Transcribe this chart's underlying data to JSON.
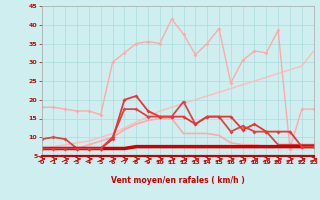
{
  "xlabel": "Vent moyen/en rafales ( km/h )",
  "xlim": [
    0,
    23
  ],
  "ylim": [
    5,
    45
  ],
  "yticks": [
    5,
    10,
    15,
    20,
    25,
    30,
    35,
    40,
    45
  ],
  "xticks": [
    0,
    1,
    2,
    3,
    4,
    5,
    6,
    7,
    8,
    9,
    10,
    11,
    12,
    13,
    14,
    15,
    16,
    17,
    18,
    19,
    20,
    21,
    22,
    23
  ],
  "bg_color": "#ceeef0",
  "grid_color": "#aadddd",
  "series": [
    {
      "y": [
        18,
        18,
        17.5,
        17,
        17,
        16,
        30,
        32.5,
        35,
        35.5,
        35,
        41.5,
        37.5,
        32,
        35,
        39,
        24.5,
        30.5,
        33,
        32.5,
        38.5,
        7,
        17.5,
        17.5
      ],
      "color": "#ffaaaa",
      "lw": 1.0,
      "marker": "D",
      "ms": 2.0
    },
    {
      "y": [
        7,
        7.5,
        8,
        8.5,
        9,
        10,
        11,
        12.5,
        14,
        15.5,
        17,
        18,
        19,
        20,
        21,
        22,
        23,
        24,
        25,
        26,
        27,
        28,
        29,
        33
      ],
      "color": "#ffbbbb",
      "lw": 1.0,
      "marker": null,
      "ms": 0
    },
    {
      "y": [
        7,
        7,
        7,
        7,
        8,
        9,
        10,
        12,
        13.5,
        14.5,
        15,
        15,
        11,
        11,
        11,
        10.5,
        8.5,
        8,
        8,
        7.5,
        7.5,
        7.5,
        7.5,
        7.5
      ],
      "color": "#ffaaaa",
      "lw": 1.2,
      "marker": null,
      "ms": 0
    },
    {
      "y": [
        9.5,
        10,
        9.5,
        7,
        7,
        7,
        10,
        17.5,
        17.5,
        15.5,
        15.5,
        15.5,
        19.5,
        13.5,
        15.5,
        15.5,
        11.5,
        13,
        11.5,
        11.5,
        8,
        8,
        8,
        8
      ],
      "color": "#dd4444",
      "lw": 1.3,
      "marker": "D",
      "ms": 2.0
    },
    {
      "y": [
        7,
        7,
        7,
        7,
        7,
        7,
        7,
        7,
        7.5,
        7.5,
        7.5,
        7.5,
        7.5,
        7.5,
        7.5,
        7.5,
        7.5,
        7.5,
        7.5,
        7.5,
        7.5,
        7.5,
        7.5,
        7.5
      ],
      "color": "#cc0000",
      "lw": 2.5,
      "marker": "s",
      "ms": 2.0
    },
    {
      "y": [
        7,
        7,
        7,
        7,
        7,
        7,
        9.5,
        20,
        21,
        17,
        15.5,
        15.5,
        15.5,
        13.5,
        15.5,
        15.5,
        15.5,
        12,
        13.5,
        11.5,
        11.5,
        11.5,
        7.5,
        7.5
      ],
      "color": "#ee3333",
      "lw": 1.3,
      "marker": "D",
      "ms": 2.0
    }
  ]
}
